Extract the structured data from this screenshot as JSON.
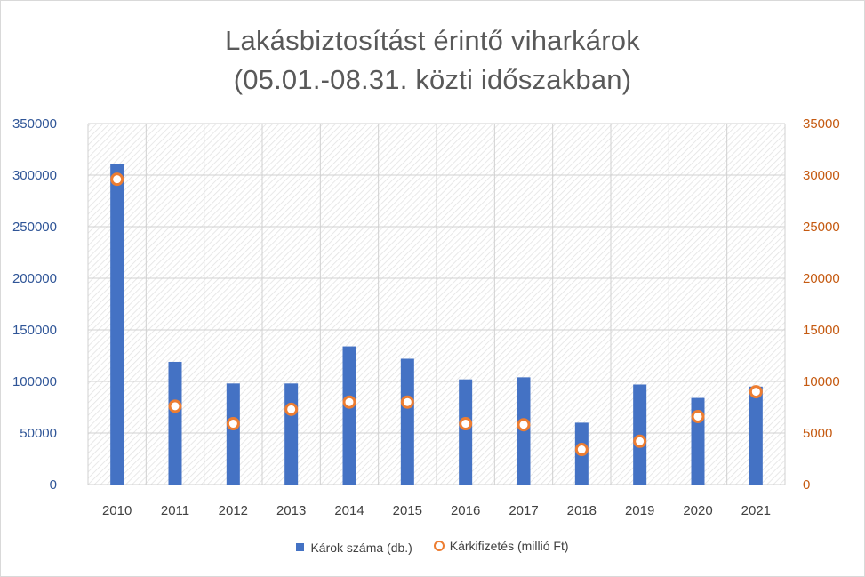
{
  "chart_data": {
    "type": "bar",
    "title": "Lakásbiztosítást érintő viharkárok",
    "subtitle": "(05.01.-08.31. közti időszakban)",
    "categories": [
      "2010",
      "2011",
      "2012",
      "2013",
      "2014",
      "2015",
      "2016",
      "2017",
      "2018",
      "2019",
      "2020",
      "2021"
    ],
    "series": [
      {
        "name": "Károk száma (db.)",
        "kind": "bar",
        "axis": "left",
        "color": "#4472c4",
        "values": [
          311000,
          119000,
          98000,
          98000,
          134000,
          122000,
          102000,
          104000,
          60000,
          97000,
          84000,
          95000
        ]
      },
      {
        "name": "Kárkifizetés (millió Ft)",
        "kind": "marker",
        "axis": "right",
        "color": "#ed7d31",
        "values": [
          29600,
          7600,
          5900,
          7300,
          8000,
          8000,
          5900,
          5800,
          3400,
          4200,
          6600,
          9000
        ]
      }
    ],
    "yleft": {
      "ylim": [
        0,
        350000
      ],
      "ticks": [
        "0",
        "50000",
        "100000",
        "150000",
        "200000",
        "250000",
        "300000",
        "350000"
      ]
    },
    "yright": {
      "ylim": [
        0,
        35000
      ],
      "ticks": [
        "0",
        "5000",
        "10000",
        "15000",
        "20000",
        "25000",
        "30000",
        "35000"
      ]
    },
    "grid": true,
    "legend": "bottom"
  }
}
